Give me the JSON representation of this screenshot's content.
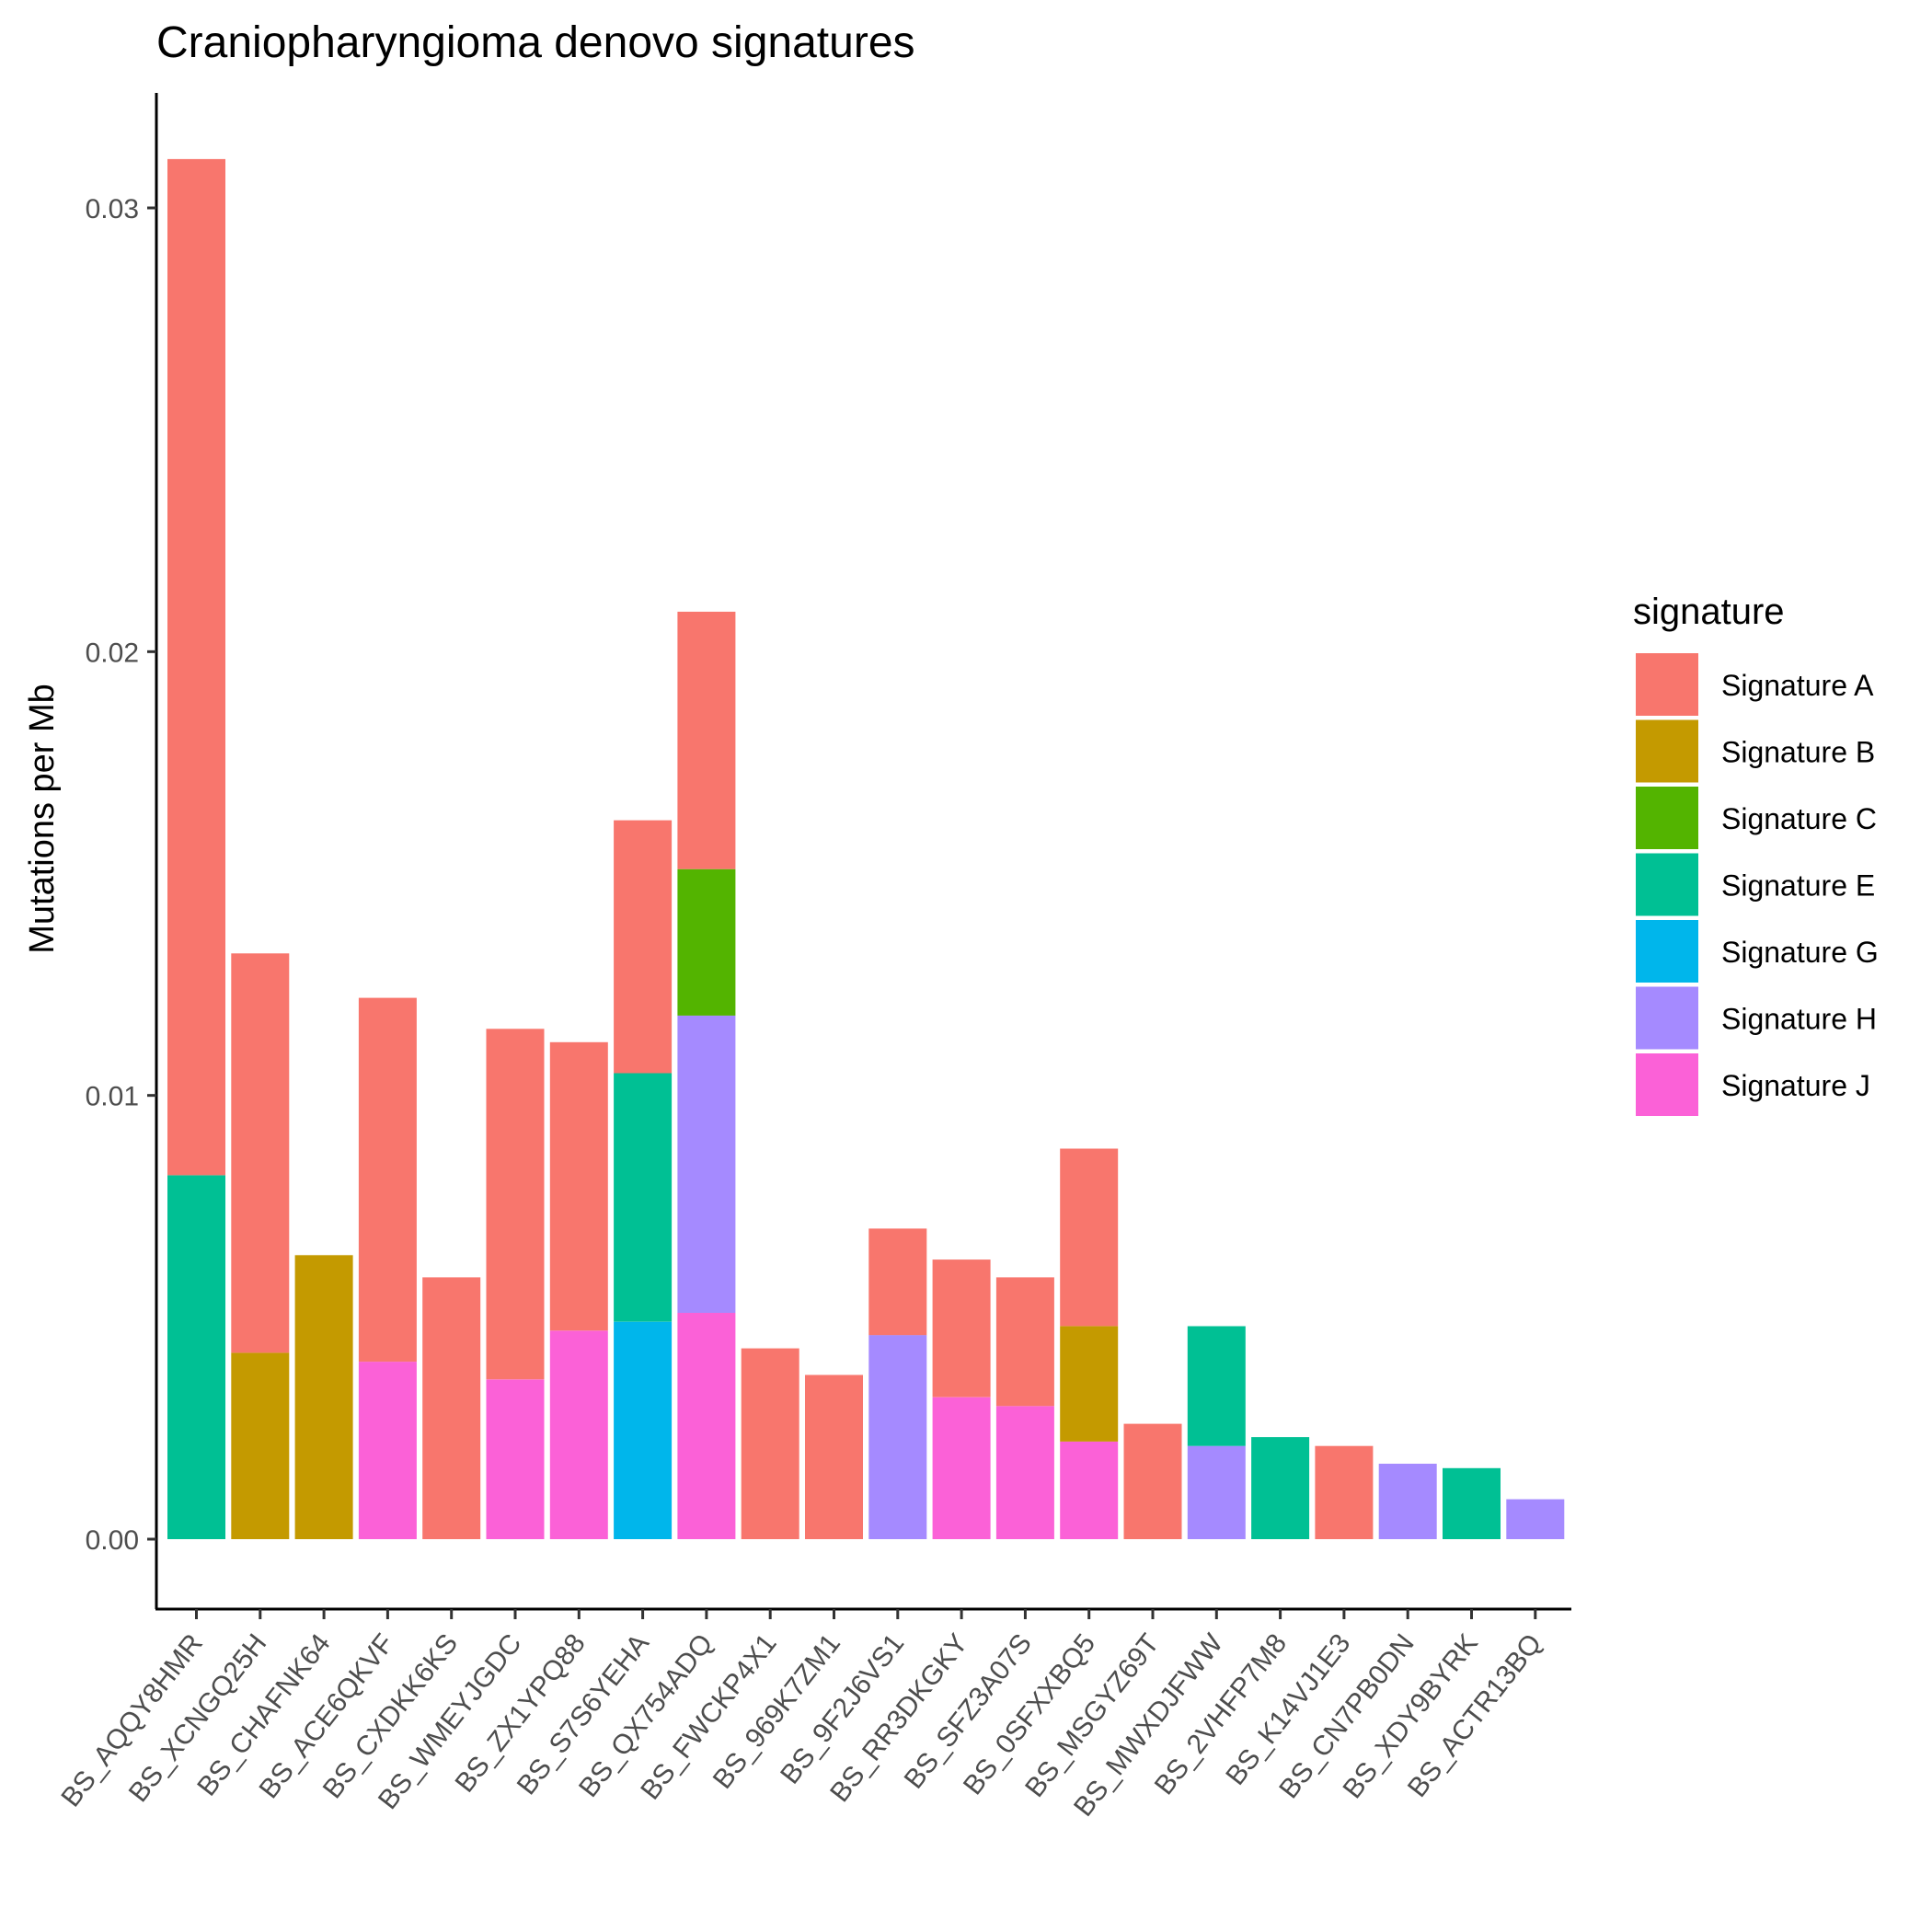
{
  "chart_data": {
    "type": "bar",
    "stacked": true,
    "title": "Craniopharyngioma denovo signatures",
    "xlabel": "",
    "ylabel": "Mutations per Mb",
    "ylim": [
      -0.0014,
      0.0325
    ],
    "yticks": [
      0.0,
      0.01,
      0.02,
      0.03
    ],
    "ytick_labels": [
      "0.00",
      "0.01",
      "0.02",
      "0.03"
    ],
    "grid": false,
    "legend_title": "signature",
    "legend_position": "right",
    "categories": [
      "BS_AQQY8HMR",
      "BS_XCNGQ25H",
      "BS_CHAFNK64",
      "BS_ACE6QKVF",
      "BS_CXDKK6KS",
      "BS_WMEYJGDC",
      "BS_ZX1YPQ88",
      "BS_S7S6YEHA",
      "BS_QX754ADQ",
      "BS_FWCKP4X1",
      "BS_969K7ZM1",
      "BS_9F2J6VS1",
      "BS_RR3DKGKY",
      "BS_SFZ3A07S",
      "BS_0SFXXBQ5",
      "BS_MSGYZ69T",
      "BS_MWXDJFWW",
      "BS_2VHFP7M8",
      "BS_K14VJ1E3",
      "BS_CN7PB0DN",
      "BS_XDY9BYRK",
      "BS_ACTR13BQ"
    ],
    "series": [
      {
        "name": "Signature A",
        "color": "#F8766D",
        "values": [
          0.0229,
          0.009,
          0,
          0.0082,
          0.0059,
          0.0079,
          0.0065,
          0.0057,
          0.0058,
          0.0043,
          0.0037,
          0.0024,
          0.0031,
          0.0029,
          0.004,
          0.0026,
          0,
          0,
          0.0021,
          0,
          0,
          0
        ]
      },
      {
        "name": "Signature B",
        "color": "#C49A00",
        "values": [
          0,
          0.0042,
          0.0064,
          0,
          0,
          0,
          0,
          0,
          0,
          0,
          0,
          0,
          0,
          0,
          0.0026,
          0,
          0,
          0,
          0,
          0,
          0,
          0
        ]
      },
      {
        "name": "Signature C",
        "color": "#53B400",
        "values": [
          0,
          0,
          0,
          0,
          0,
          0,
          0,
          0,
          0.0033,
          0,
          0,
          0,
          0,
          0,
          0,
          0,
          0,
          0,
          0,
          0,
          0,
          0
        ]
      },
      {
        "name": "Signature E",
        "color": "#00C094",
        "values": [
          0.0082,
          0,
          0,
          0,
          0,
          0,
          0,
          0.0056,
          0,
          0,
          0,
          0,
          0,
          0,
          0,
          0,
          0.0027,
          0.0023,
          0,
          0,
          0.0016,
          0
        ]
      },
      {
        "name": "Signature G",
        "color": "#00B6EB",
        "values": [
          0,
          0,
          0,
          0,
          0,
          0,
          0,
          0.0049,
          0,
          0,
          0,
          0,
          0,
          0,
          0,
          0,
          0,
          0,
          0,
          0,
          0,
          0
        ]
      },
      {
        "name": "Signature H",
        "color": "#A58AFF",
        "values": [
          0,
          0,
          0,
          0,
          0,
          0,
          0,
          0,
          0.0067,
          0,
          0,
          0.0046,
          0,
          0,
          0,
          0,
          0.0021,
          0,
          0,
          0.0017,
          0,
          0.0009
        ]
      },
      {
        "name": "Signature J",
        "color": "#FB61D7",
        "values": [
          0,
          0,
          0,
          0.004,
          0,
          0.0036,
          0.0047,
          0,
          0.0051,
          0,
          0,
          0,
          0.0032,
          0.003,
          0.0022,
          0,
          0,
          0,
          0,
          0,
          0,
          0
        ]
      }
    ],
    "stack_order": [
      "Signature J",
      "Signature H",
      "Signature G",
      "Signature E",
      "Signature C",
      "Signature B",
      "Signature A"
    ]
  }
}
